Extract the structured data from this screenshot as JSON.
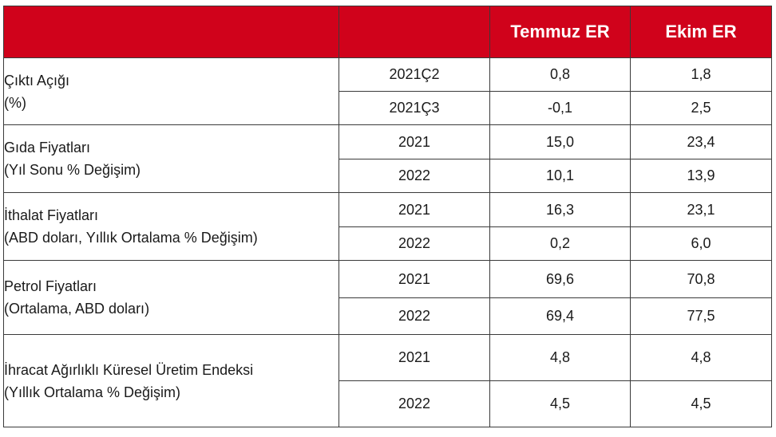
{
  "header": {
    "col1": "",
    "col2": "",
    "col3": "Temmuz ER",
    "col4": "Ekim ER"
  },
  "colors": {
    "header_bg": "#d0021b",
    "header_text": "#ffffff",
    "border": "#3a3a3a"
  },
  "groups": [
    {
      "label1": "Çıktı Açığı",
      "label2": "(%)",
      "rows": [
        {
          "period": "2021Ç2",
          "temmuz": "0,8",
          "ekim": "1,8"
        },
        {
          "period": "2021Ç3",
          "temmuz": "-0,1",
          "ekim": "2,5"
        }
      ]
    },
    {
      "label1": "Gıda Fiyatları",
      "label2": "(Yıl Sonu % Değişim)",
      "rows": [
        {
          "period": "2021",
          "temmuz": "15,0",
          "ekim": "23,4"
        },
        {
          "period": "2022",
          "temmuz": "10,1",
          "ekim": "13,9"
        }
      ]
    },
    {
      "label1": "İthalat Fiyatları",
      "label2": "(ABD doları, Yıllık Ortalama % Değişim)",
      "rows": [
        {
          "period": "2021",
          "temmuz": "16,3",
          "ekim": "23,1"
        },
        {
          "period": "2022",
          "temmuz": "0,2",
          "ekim": "6,0"
        }
      ]
    },
    {
      "label1": "Petrol Fiyatları",
      "label2": "(Ortalama, ABD doları)",
      "rows": [
        {
          "period": "2021",
          "temmuz": "69,6",
          "ekim": "70,8"
        },
        {
          "period": "2022",
          "temmuz": "69,4",
          "ekim": "77,5"
        }
      ]
    },
    {
      "label1": "İhracat Ağırlıklı Küresel Üretim Endeksi",
      "label2": "(Yıllık Ortalama % Değişim)",
      "rows": [
        {
          "period": "2021",
          "temmuz": "4,8",
          "ekim": "4,8"
        },
        {
          "period": "2022",
          "temmuz": "4,5",
          "ekim": "4,5"
        }
      ]
    }
  ]
}
